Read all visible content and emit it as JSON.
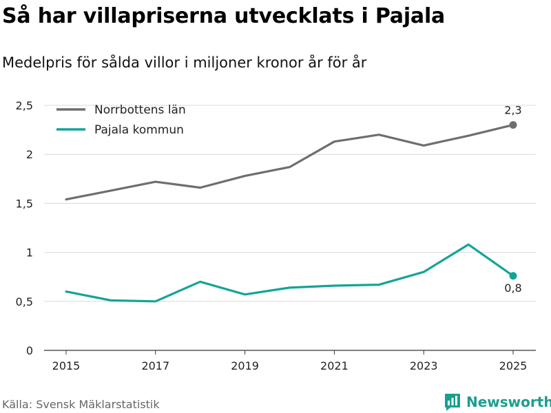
{
  "title": "Så har villapriserna utvecklats i Pajala",
  "subtitle": "Medelpris för sålda villor i miljoner kronor år för år",
  "source": "Källa: Svensk Mäklarstatistik",
  "brand": "Newsworthy",
  "colors": {
    "norrbotten": "#6e6e6e",
    "pajala": "#14a496",
    "grid": "#d9d9d9",
    "axis": "#333333",
    "brand": "#1a9e8f"
  },
  "chart_data": {
    "type": "line",
    "title": "Så har villapriserna utvecklats i Pajala",
    "subtitle": "Medelpris för sålda villor i miljoner kronor år för år",
    "xlabel": "",
    "ylabel": "",
    "x": [
      2015,
      2016,
      2017,
      2018,
      2019,
      2020,
      2021,
      2022,
      2023,
      2024,
      2025
    ],
    "xticks": [
      "2015",
      "2017",
      "2019",
      "2021",
      "2023",
      "2025"
    ],
    "yticks": [
      "0",
      "0,5",
      "1",
      "1,5",
      "2",
      "2,5"
    ],
    "ylim": [
      0,
      2.5
    ],
    "grid": true,
    "legend_position": "top-left",
    "series": [
      {
        "name": "Norrbottens län",
        "values": [
          1.54,
          1.63,
          1.72,
          1.66,
          1.78,
          1.87,
          2.13,
          2.2,
          2.09,
          2.19,
          2.3
        ],
        "end_label": "2,3"
      },
      {
        "name": "Pajala kommun",
        "values": [
          0.6,
          0.51,
          0.5,
          0.7,
          0.57,
          0.64,
          0.66,
          0.67,
          0.8,
          1.08,
          0.76
        ],
        "end_label": "0,8"
      }
    ]
  }
}
